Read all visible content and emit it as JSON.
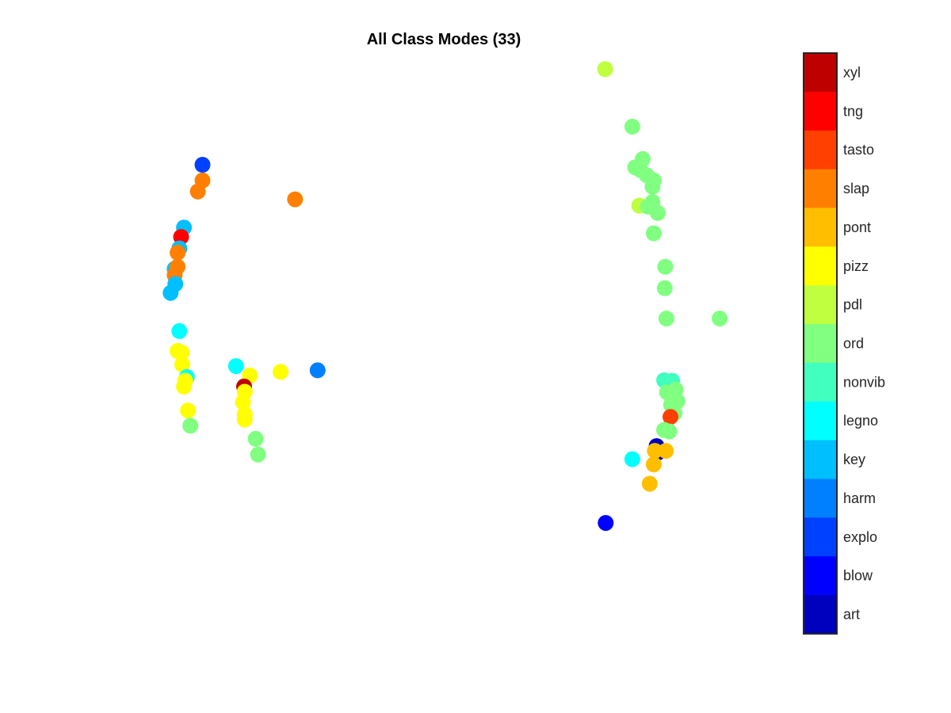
{
  "chart_data": {
    "type": "scatter",
    "title": "All Class Modes (33)",
    "xlabel": "",
    "ylabel": "",
    "axes_visible": false,
    "grid": false,
    "xlim": [
      0,
      100
    ],
    "ylim": [
      0,
      100
    ],
    "colorbar": {
      "placement": "right",
      "categories": [
        {
          "label": "art",
          "color": "#0000BF"
        },
        {
          "label": "blow",
          "color": "#0000FF"
        },
        {
          "label": "explo",
          "color": "#0040FF"
        },
        {
          "label": "harm",
          "color": "#0080FF"
        },
        {
          "label": "key",
          "color": "#00BFFF"
        },
        {
          "label": "legno",
          "color": "#00FFFF"
        },
        {
          "label": "nonvib",
          "color": "#40FFBF"
        },
        {
          "label": "ord",
          "color": "#80FF80"
        },
        {
          "label": "pdl",
          "color": "#BFFF40"
        },
        {
          "label": "pizz",
          "color": "#FFFF00"
        },
        {
          "label": "pont",
          "color": "#FFBF00"
        },
        {
          "label": "slap",
          "color": "#FF8000"
        },
        {
          "label": "tasto",
          "color": "#FF4000"
        },
        {
          "label": "tng",
          "color": "#FF0000"
        },
        {
          "label": "xyl",
          "color": "#BF0000"
        }
      ]
    },
    "points": [
      {
        "x": 7.6,
        "y": 80.6,
        "cls": "explo"
      },
      {
        "x": 7.6,
        "y": 77.6,
        "cls": "slap"
      },
      {
        "x": 6.8,
        "y": 75.5,
        "cls": "slap"
      },
      {
        "x": 23.6,
        "y": 74.0,
        "cls": "slap"
      },
      {
        "x": 4.4,
        "y": 68.6,
        "cls": "key"
      },
      {
        "x": 3.9,
        "y": 66.8,
        "cls": "tng"
      },
      {
        "x": 3.6,
        "y": 64.6,
        "cls": "key"
      },
      {
        "x": 3.3,
        "y": 63.8,
        "cls": "slap"
      },
      {
        "x": 2.8,
        "y": 60.7,
        "cls": "key"
      },
      {
        "x": 3.3,
        "y": 61.1,
        "cls": "slap"
      },
      {
        "x": 2.8,
        "y": 59.5,
        "cls": "slap"
      },
      {
        "x": 2.9,
        "y": 57.8,
        "cls": "key"
      },
      {
        "x": 2.1,
        "y": 56.1,
        "cls": "key"
      },
      {
        "x": 3.6,
        "y": 48.8,
        "cls": "legno"
      },
      {
        "x": 3.3,
        "y": 45.0,
        "cls": "pizz"
      },
      {
        "x": 4.0,
        "y": 44.7,
        "cls": "pizz"
      },
      {
        "x": 4.1,
        "y": 42.4,
        "cls": "pizz"
      },
      {
        "x": 4.9,
        "y": 40.0,
        "cls": "legno"
      },
      {
        "x": 4.6,
        "y": 39.3,
        "cls": "pizz"
      },
      {
        "x": 4.4,
        "y": 38.2,
        "cls": "pizz"
      },
      {
        "x": 5.1,
        "y": 33.6,
        "cls": "pizz"
      },
      {
        "x": 5.5,
        "y": 30.7,
        "cls": "ord"
      },
      {
        "x": 13.4,
        "y": 42.1,
        "cls": "legno"
      },
      {
        "x": 15.8,
        "y": 40.3,
        "cls": "pizz"
      },
      {
        "x": 14.8,
        "y": 38.2,
        "cls": "xyl"
      },
      {
        "x": 14.9,
        "y": 37.2,
        "cls": "pizz"
      },
      {
        "x": 14.6,
        "y": 35.2,
        "cls": "pizz"
      },
      {
        "x": 14.9,
        "y": 32.9,
        "cls": "pizz"
      },
      {
        "x": 14.9,
        "y": 31.9,
        "cls": "pizz"
      },
      {
        "x": 16.8,
        "y": 28.2,
        "cls": "ord"
      },
      {
        "x": 17.2,
        "y": 25.2,
        "cls": "ord"
      },
      {
        "x": 21.1,
        "y": 41.0,
        "cls": "pizz"
      },
      {
        "x": 27.5,
        "y": 41.3,
        "cls": "harm"
      },
      {
        "x": 77.2,
        "y": 98.9,
        "cls": "pdl"
      },
      {
        "x": 81.9,
        "y": 87.9,
        "cls": "ord"
      },
      {
        "x": 83.7,
        "y": 81.7,
        "cls": "ord"
      },
      {
        "x": 82.4,
        "y": 80.1,
        "cls": "ord"
      },
      {
        "x": 83.3,
        "y": 79.6,
        "cls": "ord"
      },
      {
        "x": 84.4,
        "y": 78.6,
        "cls": "ord"
      },
      {
        "x": 85.6,
        "y": 77.6,
        "cls": "ord"
      },
      {
        "x": 85.4,
        "y": 76.4,
        "cls": "ord"
      },
      {
        "x": 83.1,
        "y": 72.8,
        "cls": "pdl"
      },
      {
        "x": 84.6,
        "y": 72.6,
        "cls": "ord"
      },
      {
        "x": 85.4,
        "y": 73.5,
        "cls": "ord"
      },
      {
        "x": 86.3,
        "y": 71.4,
        "cls": "ord"
      },
      {
        "x": 85.6,
        "y": 67.5,
        "cls": "ord"
      },
      {
        "x": 87.6,
        "y": 61.1,
        "cls": "ord"
      },
      {
        "x": 87.5,
        "y": 57.0,
        "cls": "ord"
      },
      {
        "x": 87.8,
        "y": 51.2,
        "cls": "ord"
      },
      {
        "x": 97.0,
        "y": 51.2,
        "cls": "ord"
      },
      {
        "x": 87.4,
        "y": 39.4,
        "cls": "nonvib"
      },
      {
        "x": 88.8,
        "y": 39.3,
        "cls": "nonvib"
      },
      {
        "x": 89.4,
        "y": 37.6,
        "cls": "ord"
      },
      {
        "x": 87.9,
        "y": 37.1,
        "cls": "ord"
      },
      {
        "x": 89.7,
        "y": 35.4,
        "cls": "ord"
      },
      {
        "x": 88.6,
        "y": 34.7,
        "cls": "ord"
      },
      {
        "x": 89.2,
        "y": 33.1,
        "cls": "ord"
      },
      {
        "x": 88.5,
        "y": 32.4,
        "cls": "tasto"
      },
      {
        "x": 87.4,
        "y": 29.9,
        "cls": "ord"
      },
      {
        "x": 88.3,
        "y": 29.6,
        "cls": "ord"
      },
      {
        "x": 86.1,
        "y": 26.8,
        "cls": "art"
      },
      {
        "x": 86.4,
        "y": 25.6,
        "cls": "art"
      },
      {
        "x": 85.8,
        "y": 25.9,
        "cls": "pont"
      },
      {
        "x": 87.7,
        "y": 25.9,
        "cls": "pont"
      },
      {
        "x": 81.9,
        "y": 24.3,
        "cls": "legno"
      },
      {
        "x": 85.6,
        "y": 23.3,
        "cls": "pont"
      },
      {
        "x": 84.9,
        "y": 19.6,
        "cls": "pont"
      },
      {
        "x": 77.3,
        "y": 12.1,
        "cls": "blow"
      }
    ]
  }
}
